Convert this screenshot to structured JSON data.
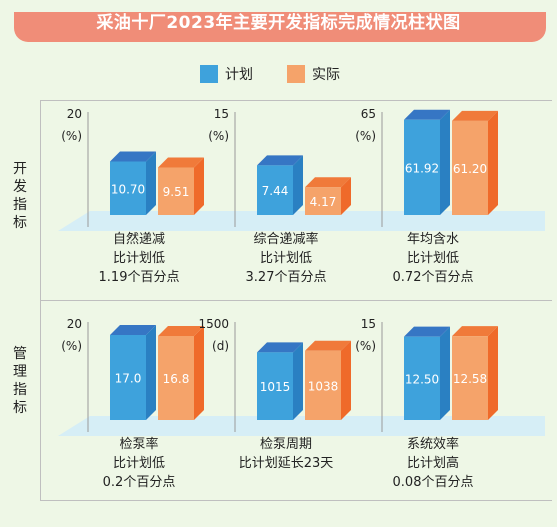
{
  "title": "采油十厂2023年主要开发指标完成情况柱状图",
  "legend": [
    {
      "label": "计划",
      "color": "#3ea2dc"
    },
    {
      "label": "实际",
      "color": "#f5a36a"
    }
  ],
  "sections": [
    {
      "label": [
        "开",
        "发",
        "指",
        "标"
      ]
    },
    {
      "label": [
        "管",
        "理",
        "指",
        "标"
      ]
    }
  ],
  "chart_data": [
    {
      "type": "bar",
      "categories": [
        "计划",
        "实际"
      ],
      "values": [
        10.7,
        9.51
      ],
      "value_labels": [
        "10.70",
        "9.51"
      ],
      "ylim": [
        0,
        20
      ],
      "axis_max_label": "20",
      "axis_unit": "(%)",
      "caption": [
        "自然递减",
        "比计划低",
        "1.19个百分点"
      ]
    },
    {
      "type": "bar",
      "categories": [
        "计划",
        "实际"
      ],
      "values": [
        7.44,
        4.17
      ],
      "value_labels": [
        "7.44",
        "4.17"
      ],
      "ylim": [
        0,
        15
      ],
      "axis_max_label": "15",
      "axis_unit": "(%)",
      "caption": [
        "综合递减率",
        "比计划低",
        "3.27个百分点"
      ]
    },
    {
      "type": "bar",
      "categories": [
        "计划",
        "实际"
      ],
      "values": [
        61.92,
        61.2
      ],
      "value_labels": [
        "61.92",
        "61.20"
      ],
      "ylim": [
        0,
        65
      ],
      "axis_max_label": "65",
      "axis_unit": "(%)",
      "caption": [
        "年均含水",
        "比计划低",
        "0.72个百分点"
      ]
    },
    {
      "type": "bar",
      "categories": [
        "计划",
        "实际"
      ],
      "values": [
        17.0,
        16.8
      ],
      "value_labels": [
        "17.0",
        "16.8"
      ],
      "ylim": [
        0,
        20
      ],
      "axis_max_label": "20",
      "axis_unit": "(%)",
      "caption": [
        "检泵率",
        "比计划低",
        "0.2个百分点"
      ]
    },
    {
      "type": "bar",
      "categories": [
        "计划",
        "实际"
      ],
      "values": [
        1015,
        1038
      ],
      "value_labels": [
        "1015",
        "1038"
      ],
      "ylim": [
        0,
        1500
      ],
      "axis_max_label": "1500",
      "axis_unit": "(d)",
      "caption": [
        "检泵周期",
        "比计划延长23天",
        ""
      ]
    },
    {
      "type": "bar",
      "categories": [
        "计划",
        "实际"
      ],
      "values": [
        12.5,
        12.58
      ],
      "value_labels": [
        "12.50",
        "12.58"
      ],
      "ylim": [
        0,
        15
      ],
      "axis_max_label": "15",
      "axis_unit": "(%)",
      "caption": [
        "系统效率",
        "比计划高",
        "0.08个百分点"
      ]
    }
  ]
}
